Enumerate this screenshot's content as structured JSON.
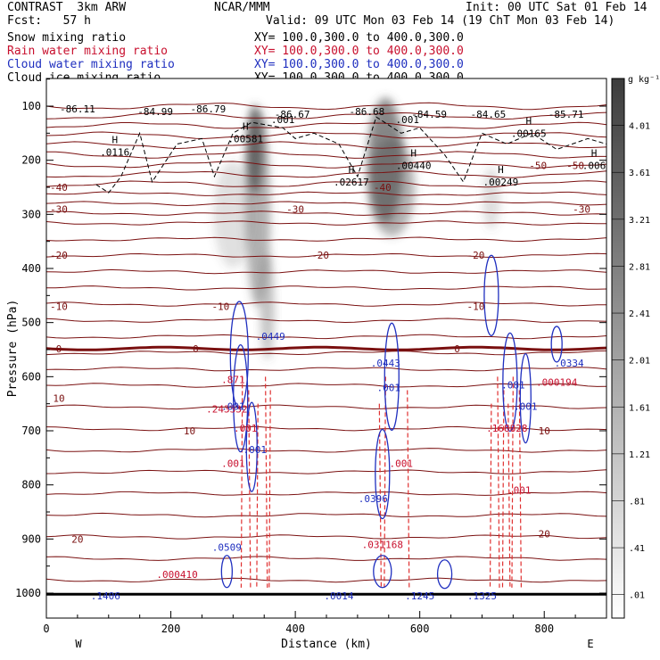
{
  "header": {
    "model": "CONTRAST  3km ARW",
    "center": "NCAR/MMM",
    "init": "Init: 00 UTC Sat 01 Feb 14",
    "fcst": "Fcst:   57 h",
    "valid": "Valid: 09 UTC Mon 03 Feb 14 (19 ChT Mon 03 Feb 14)"
  },
  "fields": [
    {
      "name": "Snow mixing ratio",
      "xy": "XY= 100.0,300.0 to 400.0,300.0",
      "color": "#000000"
    },
    {
      "name": "Rain water mixing ratio",
      "xy": "XY= 100.0,300.0 to 400.0,300.0",
      "color": "#c8102e"
    },
    {
      "name": "Cloud water mixing ratio",
      "xy": "XY= 100.0,300.0 to 400.0,300.0",
      "color": "#1f2fbf"
    },
    {
      "name": "Cloud ice mixing ratio",
      "xy": "XY= 100.0,300.0 to 400.0,300.0",
      "color": "#000000"
    }
  ],
  "chart_data": {
    "type": "cross-section",
    "xlabel": "Distance (km)",
    "ylabel": "Pressure (hPa)",
    "xlim": [
      0,
      900
    ],
    "ylim": [
      1050,
      50
    ],
    "xticks": [
      0,
      200,
      400,
      600,
      800
    ],
    "yticks": [
      100,
      200,
      300,
      400,
      500,
      600,
      700,
      800,
      900,
      1000
    ],
    "west_label": "W",
    "east_label": "E",
    "colorbar": {
      "unit": "g kg⁻¹",
      "levels": [
        ".01",
        ".41",
        ".81",
        "1.21",
        "1.61",
        "2.01",
        "2.41",
        "2.81",
        "3.21",
        "3.61",
        "4.01"
      ]
    },
    "temperature_labels": [
      {
        "value": "-40",
        "x": 20,
        "p": 250
      },
      {
        "value": "-40",
        "x": 540,
        "p": 250
      },
      {
        "value": "-30",
        "x": 20,
        "p": 290
      },
      {
        "value": "-30",
        "x": 400,
        "p": 290
      },
      {
        "value": "-30",
        "x": 860,
        "p": 290
      },
      {
        "value": "-20",
        "x": 20,
        "p": 375
      },
      {
        "value": "-20",
        "x": 440,
        "p": 375
      },
      {
        "value": "-20",
        "x": 690,
        "p": 375
      },
      {
        "value": "-10",
        "x": 20,
        "p": 470
      },
      {
        "value": "-10",
        "x": 280,
        "p": 470
      },
      {
        "value": "-10",
        "x": 690,
        "p": 470
      },
      {
        "value": "0",
        "x": 20,
        "p": 548
      },
      {
        "value": "0",
        "x": 240,
        "p": 548
      },
      {
        "value": "0",
        "x": 660,
        "p": 548
      },
      {
        "value": "10",
        "x": 20,
        "p": 640
      },
      {
        "value": "10",
        "x": 230,
        "p": 700
      },
      {
        "value": "10",
        "x": 800,
        "p": 700
      },
      {
        "value": "20",
        "x": 50,
        "p": 900
      },
      {
        "value": "20",
        "x": 800,
        "p": 890
      }
    ],
    "upper_labels": [
      {
        "text": "-86.11",
        "x": 50,
        "p": 105
      },
      {
        "text": "-84.99",
        "x": 175,
        "p": 110
      },
      {
        "text": "-86.79",
        "x": 260,
        "p": 105
      },
      {
        "text": "-86.67",
        "x": 395,
        "p": 115
      },
      {
        "text": "-86.68",
        "x": 515,
        "p": 110
      },
      {
        "text": "-84.59",
        "x": 615,
        "p": 115
      },
      {
        "text": "-84.65",
        "x": 710,
        "p": 115
      },
      {
        "text": "-85.71",
        "x": 835,
        "p": 115
      },
      {
        "text": ".001",
        "x": 380,
        "p": 125
      },
      {
        "text": ".001",
        "x": 580,
        "p": 125
      },
      {
        "text": "-50",
        "x": 790,
        "p": 210
      },
      {
        "text": "-50",
        "x": 850,
        "p": 210
      }
    ],
    "snow_maxima": [
      {
        "text": ".0116",
        "x": 110,
        "p": 185
      },
      {
        "text": ".00581",
        "x": 320,
        "p": 160
      },
      {
        "text": ".00440",
        "x": 590,
        "p": 210
      },
      {
        "text": ".02617",
        "x": 490,
        "p": 240
      },
      {
        "text": ".00249",
        "x": 730,
        "p": 240
      },
      {
        "text": ".00165",
        "x": 775,
        "p": 150
      },
      {
        "text": ".006",
        "x": 880,
        "p": 210
      }
    ],
    "rain_labels": [
      {
        "text": ".871",
        "x": 300,
        "p": 605
      },
      {
        "text": ".243332",
        "x": 290,
        "p": 660
      },
      {
        "text": ".001",
        "x": 320,
        "p": 695
      },
      {
        "text": ".001",
        "x": 300,
        "p": 760
      },
      {
        "text": ".001",
        "x": 570,
        "p": 760
      },
      {
        "text": ".168828",
        "x": 740,
        "p": 695
      },
      {
        "text": ".001",
        "x": 760,
        "p": 810
      },
      {
        "text": ".000194",
        "x": 820,
        "p": 610
      },
      {
        "text": ".031168",
        "x": 540,
        "p": 910
      },
      {
        "text": ".000410",
        "x": 210,
        "p": 965
      }
    ],
    "cloud_water_labels": [
      {
        "text": ".0449",
        "x": 360,
        "p": 525
      },
      {
        "text": ".001",
        "x": 300,
        "p": 655
      },
      {
        "text": ".001",
        "x": 335,
        "p": 735
      },
      {
        "text": ".001",
        "x": 550,
        "p": 620
      },
      {
        "text": ".0443",
        "x": 545,
        "p": 575
      },
      {
        "text": ".081",
        "x": 750,
        "p": 615
      },
      {
        "text": ".001",
        "x": 770,
        "p": 655
      },
      {
        "text": ".0334",
        "x": 840,
        "p": 575
      },
      {
        "text": ".0396",
        "x": 525,
        "p": 825
      },
      {
        "text": ".0509",
        "x": 290,
        "p": 915
      },
      {
        "text": ".1406",
        "x": 95,
        "p": 1005
      },
      {
        "text": ".0014",
        "x": 470,
        "p": 1005
      },
      {
        "text": ".1245",
        "x": 600,
        "p": 1005
      },
      {
        "text": ".1325",
        "x": 700,
        "p": 1005
      }
    ]
  }
}
